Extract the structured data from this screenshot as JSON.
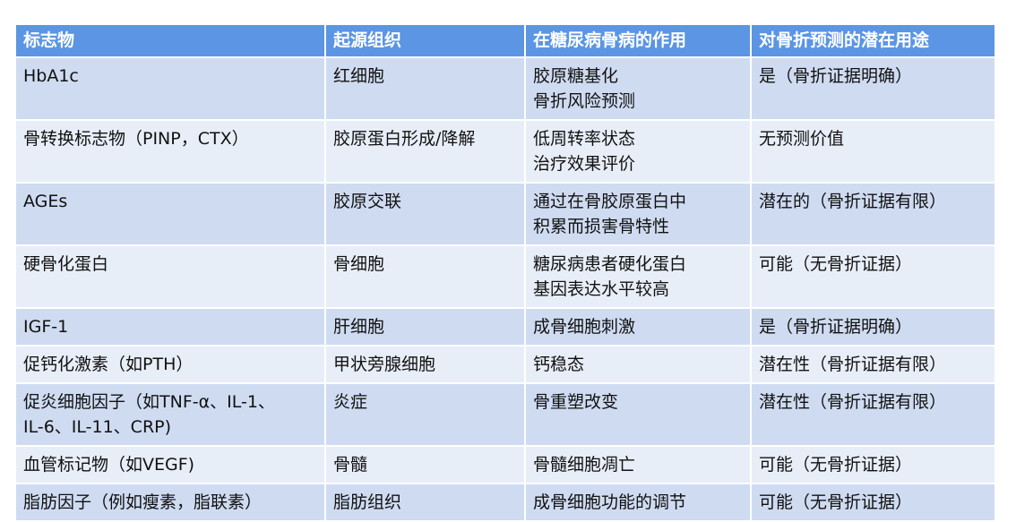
{
  "headers": [
    "标志物",
    "起源组织",
    "在糖尿病骨病的作用",
    "对骨折预测的潜在用途"
  ],
  "rows": [
    [
      "HbA1c",
      "红细胞",
      "胶原糖基化\n骨折风险预测",
      "是（骨折证据明确）"
    ],
    [
      "骨转换标志物（PINP，CTX）",
      "胶原蛋白形成/降解",
      "低周转率状态\n治疗效果评价",
      "无预测价值"
    ],
    [
      "AGEs",
      "胶原交联",
      "通过在骨胶原蛋白中\n积累而损害骨特性",
      "潜在的（骨折证据有限）"
    ],
    [
      "硬骨化蛋白",
      "骨细胞",
      "糖尿病患者硬化蛋白\n基因表达水平较高",
      "可能（无骨折证据）"
    ],
    [
      "IGF-1",
      "肝细胞",
      "成骨细胞刺激",
      "是（骨折证据明确）"
    ],
    [
      "促钙化激素（如PTH）",
      "甲状旁腺细胞",
      "钙稳态",
      "潜在性（骨折证据有限）"
    ],
    [
      "促炎细胞因子（如TNF-α、IL-1、\nIL-6、IL-11、CRP)",
      "炎症",
      "骨重塑改变",
      "潜在性（骨折证据有限）"
    ],
    [
      "血管标记物（如VEGF)",
      "骨髓",
      "骨髓细胞凋亡",
      "可能（无骨折证据）"
    ],
    [
      "脂肪因子（例如瘦素，脂联素）",
      "脂肪组织",
      "成骨细胞功能的调节",
      "可能（无骨折证据）"
    ]
  ]
}
